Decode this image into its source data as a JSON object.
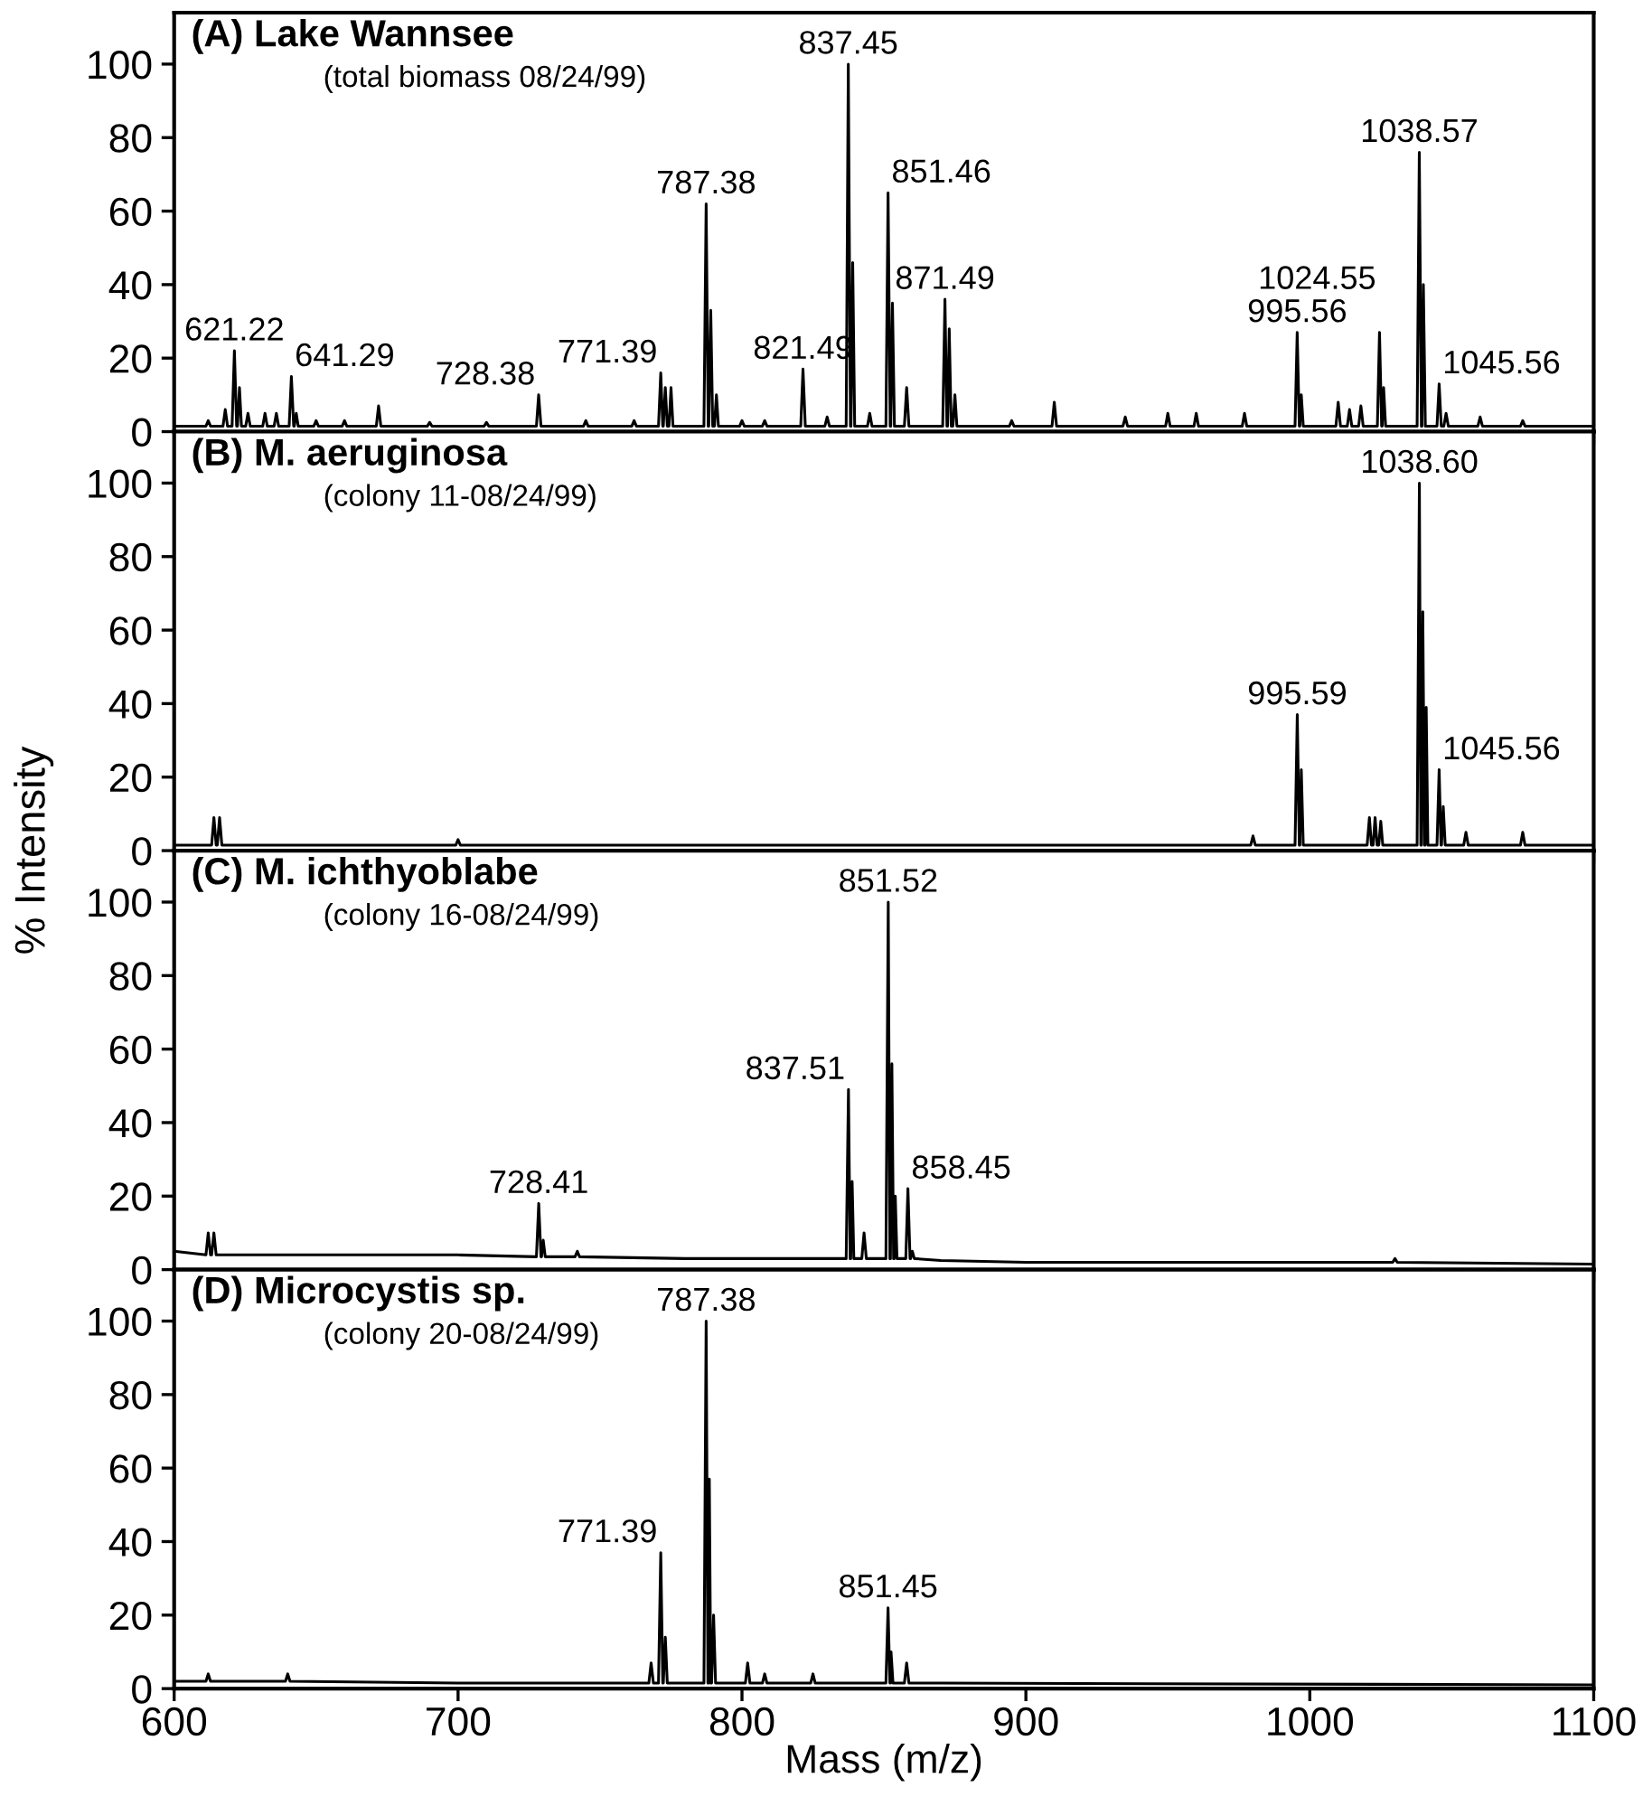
{
  "chart_data": [
    {
      "type": "line",
      "title": "(A) Lake Wannsee",
      "subtitle": "(total biomass 08/24/99)",
      "xlim": [
        600,
        1100
      ],
      "xticks": [
        600,
        700,
        800,
        900,
        1000,
        1100
      ],
      "ylim": [
        0,
        114
      ],
      "yticks": [
        0,
        20,
        40,
        60,
        80,
        100
      ],
      "tick_labels": "y",
      "series": [
        {
          "color": "#000000",
          "x": [
            600,
            611.2,
            612,
            612.8,
            617.2,
            618,
            618.8,
            620.4,
            621.22,
            622,
            622.3,
            623,
            623.7,
            625.2,
            626,
            626.8,
            631.2,
            632,
            632.8,
            635.2,
            636,
            636.8,
            640.5,
            641.29,
            642.1,
            642.3,
            643,
            643.7,
            649.2,
            650,
            650.8,
            659.2,
            660,
            660.8,
            671.2,
            672,
            672.8,
            689.2,
            690,
            690.8,
            709.2,
            710,
            710.8,
            727.6,
            728.38,
            729.2,
            744.2,
            745,
            745.8,
            761.2,
            762,
            762.8,
            770.6,
            771.39,
            772.1,
            772.3,
            773,
            773.7,
            774.3,
            775,
            775.7,
            786.6,
            787.38,
            788.1,
            788.3,
            789,
            789.7,
            790.3,
            791,
            791.7,
            799.2,
            800,
            800.8,
            807.2,
            808,
            808.8,
            820.7,
            821.49,
            822.3,
            829.2,
            830,
            830.8,
            836.7,
            837.45,
            838.2,
            838.4,
            839,
            839.7,
            844.2,
            845,
            845.8,
            850.7,
            851.46,
            852.2,
            852.4,
            853,
            853.7,
            857.2,
            858,
            858.8,
            870.7,
            871.49,
            872.2,
            872.4,
            873,
            873.7,
            874.3,
            875,
            875.7,
            894.2,
            895,
            895.8,
            909.2,
            910,
            910.8,
            934.2,
            935,
            935.8,
            949.2,
            950,
            950.8,
            959.2,
            960,
            960.8,
            976.2,
            977,
            977.8,
            994.8,
            995.56,
            996.3,
            996.5,
            997,
            997.7,
            1009.2,
            1010,
            1010.8,
            1013.2,
            1014,
            1014.8,
            1017.2,
            1018,
            1018.8,
            1023.8,
            1024.55,
            1025.3,
            1025.5,
            1026,
            1026.7,
            1037.8,
            1038.57,
            1039.3,
            1039.5,
            1040,
            1040.7,
            1044.8,
            1045.56,
            1046.3,
            1047.2,
            1048,
            1048.8,
            1059.2,
            1060,
            1060.8,
            1074.2,
            1075,
            1075.8,
            1100
          ],
          "values": [
            1.5,
            1.5,
            3,
            1.5,
            1.5,
            6,
            1.5,
            1.5,
            22,
            1.5,
            1.5,
            12,
            1.5,
            1.5,
            5,
            1.5,
            1.5,
            5,
            1.5,
            1.5,
            5,
            1.5,
            1.5,
            15,
            1.5,
            1.5,
            5,
            1.5,
            1.5,
            3,
            1.5,
            1.5,
            3,
            1.5,
            1.5,
            7,
            1.5,
            1.5,
            2.5,
            1.5,
            1.5,
            2.5,
            1.5,
            1.5,
            10,
            1.5,
            1.5,
            3,
            1.5,
            1.5,
            3,
            1.5,
            1.5,
            16,
            1.5,
            1.5,
            12,
            1.5,
            1.5,
            12,
            1.5,
            1.5,
            62,
            1.5,
            1.5,
            33,
            1.5,
            1.5,
            10,
            1.5,
            1.5,
            3,
            1.5,
            1.5,
            3,
            1.5,
            1.5,
            17,
            1.5,
            1.5,
            4,
            1.5,
            1.5,
            100,
            1.5,
            1.5,
            46,
            1.5,
            1.5,
            5,
            1.5,
            1.5,
            65,
            1.5,
            1.5,
            35,
            1.5,
            1.5,
            12,
            1.5,
            1.5,
            36,
            1.5,
            1.5,
            28,
            1.5,
            1.5,
            10,
            1.5,
            1.5,
            3,
            1.5,
            1.5,
            8,
            1.5,
            1.5,
            4,
            1.5,
            1.5,
            5,
            1.5,
            1.5,
            5,
            1.5,
            1.5,
            5,
            1.5,
            1.5,
            27,
            1.5,
            1.5,
            10,
            1.5,
            1.5,
            8,
            1.5,
            1.5,
            6,
            1.5,
            1.5,
            7,
            1.5,
            1.5,
            27,
            1.5,
            1.5,
            12,
            1.5,
            1.5,
            76,
            1.5,
            1.5,
            40,
            1.5,
            1.5,
            13,
            1.5,
            1.5,
            5,
            1.5,
            1.5,
            4,
            1.5,
            1.5,
            3,
            1.5,
            1.5
          ]
        }
      ],
      "annotations": [
        {
          "text": "621.22",
          "x": 621.22,
          "y": 22
        },
        {
          "text": "641.29",
          "x": 641.29,
          "y": 15
        },
        {
          "text": "728.38",
          "x": 728.38,
          "y": 10
        },
        {
          "text": "771.39",
          "x": 771.39,
          "y": 16
        },
        {
          "text": "787.38",
          "x": 787.38,
          "y": 62
        },
        {
          "text": "821.49",
          "x": 821.49,
          "y": 17
        },
        {
          "text": "837.45",
          "x": 837.45,
          "y": 100
        },
        {
          "text": "851.46",
          "x": 851.46,
          "y": 65
        },
        {
          "text": "871.49",
          "x": 871.49,
          "y": 36
        },
        {
          "text": "995.56",
          "x": 995.56,
          "y": 27
        },
        {
          "text": "1024.55",
          "x": 1024.55,
          "y": 27
        },
        {
          "text": "1038.57",
          "x": 1038.57,
          "y": 76
        },
        {
          "text": "1045.56",
          "x": 1045.56,
          "y": 13
        }
      ]
    },
    {
      "type": "line",
      "title": "(B) M. aeruginosa",
      "subtitle": "(colony 11-08/24/99)",
      "ylabel": "% Intensity",
      "xlim": [
        600,
        1100
      ],
      "xticks": [
        600,
        700,
        800,
        900,
        1000,
        1100
      ],
      "ylim": [
        0,
        114
      ],
      "yticks": [
        0,
        20,
        40,
        60,
        80,
        100
      ],
      "tick_labels": "y",
      "series": [
        {
          "color": "#000000",
          "x": [
            600,
            613.2,
            614,
            614.8,
            615.2,
            616,
            616.8,
            699.2,
            700,
            700.8,
            979.2,
            980,
            980.8,
            994.8,
            995.59,
            996.3,
            996.5,
            997,
            997.7,
            1020.2,
            1021,
            1021.7,
            1022.3,
            1023,
            1023.7,
            1024.3,
            1025,
            1025.7,
            1037.8,
            1038.6,
            1039.1,
            1039.3,
            1039.8,
            1040.4,
            1040.6,
            1041,
            1041.6,
            1044.8,
            1045.56,
            1046.2,
            1046.4,
            1047,
            1047.7,
            1054.2,
            1055,
            1055.8,
            1074.2,
            1075,
            1075.8,
            1100
          ],
          "values": [
            1.5,
            1.5,
            9,
            1.5,
            1.5,
            9,
            1.5,
            1.5,
            3,
            1.5,
            1.5,
            4,
            1.5,
            1.5,
            37,
            1.5,
            1.5,
            22,
            1.5,
            1.5,
            9,
            1.5,
            1.5,
            9,
            1.5,
            1.5,
            8,
            1.5,
            1.5,
            100,
            1.5,
            1.5,
            65,
            1.5,
            1.5,
            39,
            1.5,
            1.5,
            22,
            1.5,
            1.5,
            12,
            1.5,
            1.5,
            5,
            1.5,
            1.5,
            5,
            1.5,
            1.5
          ]
        }
      ],
      "annotations": [
        {
          "text": "995.59",
          "x": 995.59,
          "y": 37
        },
        {
          "text": "1038.60",
          "x": 1038.6,
          "y": 100
        },
        {
          "text": "1045.56",
          "x": 1045.56,
          "y": 22
        }
      ]
    },
    {
      "type": "line",
      "title": "(C) M. ichthyoblabe",
      "subtitle": "(colony 16-08/24/99)",
      "xlim": [
        600,
        1100
      ],
      "xticks": [
        600,
        700,
        800,
        900,
        1000,
        1100
      ],
      "ylim": [
        0,
        114
      ],
      "yticks": [
        0,
        20,
        40,
        60,
        80,
        100
      ],
      "tick_labels": "y",
      "series": [
        {
          "color": "#000000",
          "x": [
            600,
            611.2,
            612,
            612.8,
            613.2,
            614,
            614.8,
            650,
            700,
            727.6,
            728.41,
            729.2,
            729.4,
            730,
            730.7,
            741.2,
            742,
            742.8,
            780,
            836.7,
            837.51,
            838.1,
            838.3,
            838.8,
            839.4,
            842.2,
            843,
            843.8,
            850.7,
            851.52,
            852.1,
            852.3,
            852.8,
            853.4,
            853.6,
            854,
            854.6,
            857.7,
            858.45,
            859.2,
            859.4,
            860,
            860.7,
            870,
            900,
            1000,
            1029.2,
            1030,
            1030.8,
            1100
          ],
          "values": [
            5,
            4,
            10,
            4,
            4,
            10,
            4,
            4,
            4,
            3.5,
            18,
            3.5,
            3.5,
            8,
            3.5,
            3.5,
            5,
            3.5,
            3,
            3,
            49,
            3,
            3,
            24,
            3,
            3,
            10,
            3,
            3,
            100,
            3,
            3,
            56,
            3,
            3,
            20,
            3,
            3,
            22,
            3,
            3,
            5,
            3,
            2.5,
            2,
            2,
            2,
            3,
            2,
            1.5
          ]
        }
      ],
      "annotations": [
        {
          "text": "728.41",
          "x": 728.41,
          "y": 18
        },
        {
          "text": "837.51",
          "x": 837.51,
          "y": 49
        },
        {
          "text": "851.52",
          "x": 851.52,
          "y": 100
        },
        {
          "text": "858.45",
          "x": 858.45,
          "y": 22
        }
      ]
    },
    {
      "type": "line",
      "title": "(D) Microcystis sp.",
      "subtitle": "(colony 20-08/24/99)",
      "xlabel": "Mass (m/z)",
      "xlim": [
        600,
        1100
      ],
      "xticks": [
        600,
        700,
        800,
        900,
        1000,
        1100
      ],
      "ylim": [
        0,
        114
      ],
      "yticks": [
        0,
        20,
        40,
        60,
        80,
        100
      ],
      "series": [
        {
          "color": "#000000",
          "x": [
            600,
            611.2,
            612,
            612.8,
            639.2,
            640,
            640.8,
            700,
            767.2,
            768,
            768.8,
            770.6,
            771.39,
            772.1,
            772.3,
            773,
            773.7,
            786.6,
            787.38,
            788,
            788.2,
            788.5,
            789,
            789.3,
            790,
            790.7,
            801.2,
            802,
            802.8,
            807.2,
            808,
            808.8,
            824.2,
            825,
            825.8,
            850.7,
            851.45,
            852.1,
            852.3,
            852.5,
            853.2,
            857.2,
            858,
            858.8,
            870,
            1100
          ],
          "values": [
            2,
            2,
            4,
            2,
            2,
            4,
            2,
            1.5,
            1.5,
            7,
            1.5,
            1.5,
            37,
            1.5,
            1.5,
            14,
            1.5,
            1.5,
            100,
            1.5,
            1.5,
            57,
            1.5,
            1.5,
            20,
            1.5,
            1.5,
            7,
            1.5,
            1.5,
            4,
            1.5,
            1.5,
            4,
            1.5,
            1.5,
            22,
            1.5,
            1.5,
            10,
            1.5,
            1.5,
            7,
            1.5,
            1.5,
            1
          ]
        }
      ],
      "annotations": [
        {
          "text": "771.39",
          "x": 771.39,
          "y": 37
        },
        {
          "text": "787.38",
          "x": 787.38,
          "y": 100
        },
        {
          "text": "851.45",
          "x": 851.45,
          "y": 22
        }
      ]
    }
  ]
}
